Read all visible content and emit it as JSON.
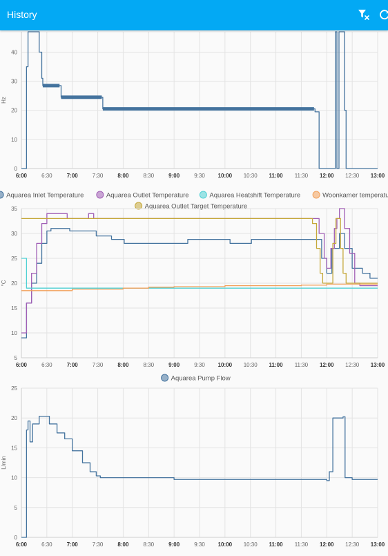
{
  "app": {
    "title": "History"
  },
  "toolbar": [
    {
      "icon": "filter-remove-icon"
    },
    {
      "icon": "refresh-icon"
    }
  ],
  "time_ticks": [
    "6:00",
    "6:30",
    "7:00",
    "7:30",
    "8:00",
    "8:30",
    "9:00",
    "9:30",
    "10:00",
    "10:30",
    "11:00",
    "11:30",
    "12:00",
    "12:30",
    "13:00"
  ],
  "chart_data": [
    {
      "type": "line",
      "ylabel": "Hz",
      "ylim": [
        0,
        47
      ],
      "yticks": [
        0,
        10,
        20,
        30,
        40
      ],
      "grid": true,
      "series": [
        {
          "color": "#44739e",
          "points": [
            [
              6.0,
              0
            ],
            [
              6.08,
              0
            ],
            [
              6.1,
              35
            ],
            [
              6.13,
              47
            ],
            [
              6.3,
              47
            ],
            [
              6.35,
              40
            ],
            [
              6.4,
              31
            ],
            [
              6.42,
              28.5
            ],
            [
              6.75,
              28.5
            ],
            [
              6.78,
              24.5
            ],
            [
              7.58,
              24.5
            ],
            [
              7.6,
              20.5
            ],
            [
              11.75,
              20.5
            ],
            [
              11.77,
              19.5
            ],
            [
              11.83,
              19.5
            ],
            [
              11.85,
              0
            ],
            [
              12.15,
              0
            ],
            [
              12.17,
              47
            ],
            [
              12.2,
              0
            ],
            [
              12.22,
              0
            ],
            [
              12.24,
              47
            ],
            [
              12.3,
              47
            ],
            [
              12.35,
              20
            ],
            [
              12.38,
              0
            ],
            [
              13.0,
              0
            ]
          ]
        }
      ]
    },
    {
      "type": "line",
      "ylabel": "°C",
      "ylim": [
        5,
        35
      ],
      "yticks": [
        5,
        10,
        15,
        20,
        25,
        30,
        35
      ],
      "grid": true,
      "legend": "top",
      "series": [
        {
          "name": "Aquarea Inlet Temperature",
          "color": "#44739e",
          "points": [
            [
              6.0,
              9
            ],
            [
              6.08,
              9
            ],
            [
              6.1,
              16
            ],
            [
              6.2,
              20
            ],
            [
              6.3,
              24
            ],
            [
              6.4,
              28
            ],
            [
              6.5,
              30.5
            ],
            [
              6.58,
              31
            ],
            [
              6.92,
              31
            ],
            [
              6.95,
              30.5
            ],
            [
              7.45,
              30.5
            ],
            [
              7.47,
              29.5
            ],
            [
              7.75,
              29.5
            ],
            [
              7.77,
              28.8
            ],
            [
              8.0,
              28.8
            ],
            [
              8.02,
              28
            ],
            [
              9.25,
              28
            ],
            [
              9.27,
              28.8
            ],
            [
              10.08,
              28.8
            ],
            [
              10.1,
              28
            ],
            [
              10.5,
              28
            ],
            [
              10.52,
              28.8
            ],
            [
              11.83,
              28.8
            ],
            [
              11.9,
              25
            ],
            [
              12.0,
              22
            ],
            [
              12.1,
              27
            ],
            [
              12.25,
              30
            ],
            [
              12.35,
              27
            ],
            [
              12.5,
              23
            ],
            [
              12.6,
              23
            ],
            [
              12.7,
              22
            ],
            [
              12.85,
              21
            ],
            [
              13.0,
              21
            ]
          ]
        },
        {
          "name": "Aquarea Outlet Temperature",
          "color": "#a05eb5",
          "points": [
            [
              6.0,
              10
            ],
            [
              6.08,
              10
            ],
            [
              6.1,
              16
            ],
            [
              6.2,
              22
            ],
            [
              6.3,
              28
            ],
            [
              6.4,
              32
            ],
            [
              6.5,
              34
            ],
            [
              6.88,
              34
            ],
            [
              6.9,
              33
            ],
            [
              7.3,
              33
            ],
            [
              7.32,
              34
            ],
            [
              7.4,
              34
            ],
            [
              7.42,
              33
            ],
            [
              8.0,
              33
            ],
            [
              11.75,
              33
            ],
            [
              11.85,
              30
            ],
            [
              11.95,
              25
            ],
            [
              12.0,
              23
            ],
            [
              12.08,
              27
            ],
            [
              12.15,
              31
            ],
            [
              12.2,
              33
            ],
            [
              12.25,
              35
            ],
            [
              12.35,
              31
            ],
            [
              12.45,
              26
            ],
            [
              12.55,
              20
            ],
            [
              12.65,
              19.5
            ],
            [
              13.0,
              19.5
            ]
          ]
        },
        {
          "name": "Aquarea Heatshift Temperature",
          "color": "#4fd0d4",
          "points": [
            [
              6.0,
              25
            ],
            [
              6.08,
              25
            ],
            [
              6.1,
              19
            ],
            [
              8.0,
              19
            ],
            [
              13.0,
              19
            ]
          ]
        },
        {
          "name": "Woonkamer temperature",
          "color": "#f2a05a",
          "points": [
            [
              6.0,
              18.5
            ],
            [
              6.5,
              18.5
            ],
            [
              7.0,
              18.8
            ],
            [
              8.0,
              19
            ],
            [
              8.5,
              19.2
            ],
            [
              9.0,
              19.3
            ],
            [
              10.0,
              19.5
            ],
            [
              11.0,
              19.5
            ],
            [
              11.5,
              19.6
            ],
            [
              12.0,
              19.8
            ],
            [
              12.5,
              19.8
            ],
            [
              13.0,
              19.8
            ]
          ]
        },
        {
          "name": "Aquarea Outlet Target Temperature",
          "color": "#c5a83a",
          "points": [
            [
              6.0,
              33
            ],
            [
              11.67,
              33
            ],
            [
              11.72,
              32
            ],
            [
              11.8,
              27
            ],
            [
              11.87,
              22
            ],
            [
              11.92,
              20
            ],
            [
              12.05,
              20
            ],
            [
              12.12,
              28
            ],
            [
              12.18,
              33
            ],
            [
              12.22,
              33
            ],
            [
              12.27,
              27
            ],
            [
              12.32,
              22
            ],
            [
              12.38,
              20
            ],
            [
              13.0,
              20
            ]
          ]
        }
      ]
    },
    {
      "type": "line",
      "ylabel": "L/min",
      "ylim": [
        0,
        25
      ],
      "yticks": [
        0,
        5,
        10,
        15,
        20,
        25
      ],
      "grid": true,
      "legend": "top",
      "series": [
        {
          "name": "Aquarea Pump Flow",
          "color": "#44739e",
          "points": [
            [
              6.0,
              0
            ],
            [
              6.08,
              0
            ],
            [
              6.1,
              18
            ],
            [
              6.13,
              19.5
            ],
            [
              6.17,
              16
            ],
            [
              6.22,
              19
            ],
            [
              6.35,
              20.3
            ],
            [
              6.45,
              20.3
            ],
            [
              6.55,
              19
            ],
            [
              6.7,
              17.5
            ],
            [
              6.85,
              16.5
            ],
            [
              7.0,
              14.5
            ],
            [
              7.2,
              12.5
            ],
            [
              7.35,
              11
            ],
            [
              7.47,
              10.3
            ],
            [
              7.55,
              10
            ],
            [
              8.0,
              10
            ],
            [
              8.5,
              10
            ],
            [
              9.0,
              9.7
            ],
            [
              10.0,
              9.7
            ],
            [
              11.0,
              9.7
            ],
            [
              11.75,
              9.7
            ],
            [
              12.0,
              9.5
            ],
            [
              12.05,
              11
            ],
            [
              12.12,
              20
            ],
            [
              12.2,
              20
            ],
            [
              12.32,
              20.2
            ],
            [
              12.36,
              10
            ],
            [
              12.5,
              9.7
            ],
            [
              13.0,
              9.7
            ]
          ]
        }
      ]
    }
  ]
}
